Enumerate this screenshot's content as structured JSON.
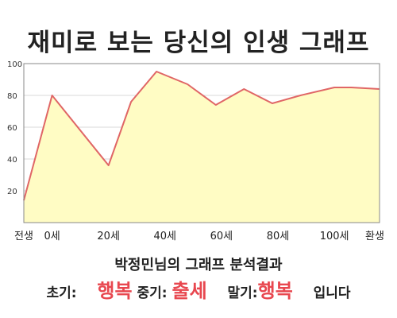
{
  "title": "재미로 보는 당신의 인생 그래프",
  "subtitle": "박정민님의 그래프 분석결과",
  "result": {
    "early_label": "초기:",
    "early_value": "행복",
    "mid_label": "중기:",
    "mid_value": "출세",
    "late_label": "말기:",
    "late_value": "행복",
    "ending": "입니다"
  },
  "colors": {
    "line": "#e06666",
    "fill": "#fffcc4",
    "highlight": "#e8474f",
    "grid": "#d9d9d9"
  },
  "chart_data": {
    "type": "area",
    "title": "재미로 보는 당신의 인생 그래프",
    "xlabel": "",
    "ylabel": "",
    "xlim": [
      -10,
      116
    ],
    "ylim": [
      0,
      100
    ],
    "x_ticks": [
      {
        "value": -10,
        "label": "전생"
      },
      {
        "value": 0,
        "label": "0세"
      },
      {
        "value": 20,
        "label": "20세"
      },
      {
        "value": 40,
        "label": "40세"
      },
      {
        "value": 60,
        "label": "60세"
      },
      {
        "value": 80,
        "label": "80세"
      },
      {
        "value": 100,
        "label": "100세"
      },
      {
        "value": 116,
        "label": "환생"
      }
    ],
    "y_ticks": [
      20,
      40,
      60,
      80,
      100
    ],
    "grid": true,
    "series": [
      {
        "x": [
          -10,
          0,
          20,
          28,
          37,
          48,
          58,
          68,
          78,
          88,
          100,
          106,
          116
        ],
        "values": [
          14,
          80,
          36,
          76,
          95,
          87,
          74,
          84,
          75,
          80,
          85,
          85,
          84
        ]
      }
    ]
  }
}
